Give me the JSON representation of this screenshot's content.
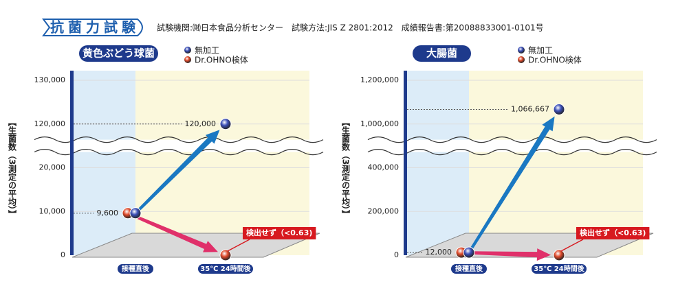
{
  "header": {
    "title": "抗菌力試験",
    "info": "試験機関:㈶日本食品分析センター　試験方法:JIS Z 2801:2012　成績報告書:第20088833001-0101号"
  },
  "chart_data": [
    {
      "type": "scatter",
      "title": "黄色ぶどう球菌",
      "y_label": "【生菌数（3測定の平均）】",
      "categories": [
        "接種直後",
        "35℃ 24時間後"
      ],
      "series": [
        {
          "name": "無加工",
          "color": "#3b4fb8",
          "values": [
            9600,
            120000
          ],
          "value_labels": [
            null,
            "120,000"
          ]
        },
        {
          "name": "Dr.OHNO検体",
          "color": "#e04a2a",
          "values": [
            9600,
            0.63
          ],
          "value_labels": [
            "9,600",
            "検出せず（<0.63)"
          ]
        }
      ],
      "ylim": [
        0,
        130000
      ],
      "yticks": [
        0,
        {
          "value": 10000,
          "label": "10,000"
        },
        {
          "value": 20000,
          "label": "20,000"
        },
        {
          "value": 120000,
          "label": "120,000"
        },
        {
          "value": 130000,
          "label": "130,000"
        }
      ],
      "grid": true
    },
    {
      "type": "scatter",
      "title": "大腸菌",
      "y_label": "【生菌数（3測定の平均）】",
      "categories": [
        "接種直後",
        "35℃ 24時間後"
      ],
      "series": [
        {
          "name": "無加工",
          "color": "#3b4fb8",
          "values": [
            12000,
            1066667
          ],
          "value_labels": [
            null,
            "1,066,667"
          ]
        },
        {
          "name": "Dr.OHNO検体",
          "color": "#e04a2a",
          "values": [
            12000,
            0.63
          ],
          "value_labels": [
            "12,000",
            "検出せず（<0.63)"
          ]
        }
      ],
      "ylim": [
        0,
        1200000
      ],
      "yticks": [
        0,
        {
          "value": 200000,
          "label": "200,000"
        },
        {
          "value": 400000,
          "label": "400,000"
        },
        {
          "value": 1000000,
          "label": "1,000,000"
        },
        {
          "value": 1200000,
          "label": "1,200,000"
        }
      ],
      "grid": true
    }
  ]
}
